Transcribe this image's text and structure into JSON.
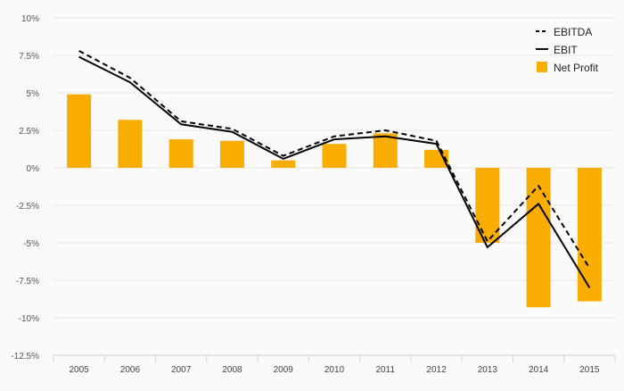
{
  "chart_data": {
    "type": "bar+line",
    "categories": [
      "2005",
      "2006",
      "2007",
      "2008",
      "2009",
      "2010",
      "2011",
      "2012",
      "2013",
      "2014",
      "2015"
    ],
    "y_ticks": [
      10,
      7.5,
      5,
      2.5,
      0,
      -2.5,
      -5,
      -7.5,
      -10,
      -12.5
    ],
    "y_tick_labels": [
      "10%",
      "7.5%",
      "5%",
      "2.5%",
      "0%",
      "-2.5%",
      "-5%",
      "-7.5%",
      "-10%",
      "-12.5%"
    ],
    "ylim": [
      -12.5,
      10
    ],
    "grid": true,
    "legend_position": "top-right",
    "series": [
      {
        "name": "EBITDA",
        "kind": "line",
        "style": "dashed",
        "color": "#000000",
        "values": [
          7.8,
          6.0,
          3.1,
          2.6,
          0.8,
          2.1,
          2.5,
          1.8,
          -4.9,
          -1.2,
          -6.7
        ]
      },
      {
        "name": "EBIT",
        "kind": "line",
        "style": "solid",
        "color": "#000000",
        "values": [
          7.4,
          5.7,
          2.9,
          2.4,
          0.6,
          1.9,
          2.1,
          1.6,
          -5.3,
          -2.4,
          -8.0
        ]
      },
      {
        "name": "Net Profit",
        "kind": "bar",
        "color": "#f9ad00",
        "values": [
          4.9,
          3.2,
          1.9,
          1.8,
          0.5,
          1.6,
          2.3,
          1.2,
          -5.0,
          -9.3,
          -8.9
        ]
      }
    ]
  }
}
